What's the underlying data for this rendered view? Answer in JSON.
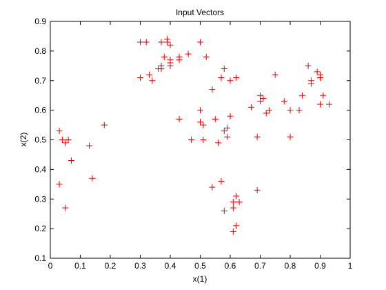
{
  "chart_data": {
    "type": "scatter",
    "title": "Input Vectors",
    "xlabel": "x(1)",
    "ylabel": "x(2)",
    "xlim": [
      0,
      1
    ],
    "ylim": [
      0.1,
      0.9
    ],
    "grid": false,
    "xticks": [
      "0",
      "0.1",
      "0.2",
      "0.3",
      "0.4",
      "0.5",
      "0.6",
      "0.7",
      "0.8",
      "0.9",
      "1"
    ],
    "yticks": [
      "0.1",
      "0.2",
      "0.3",
      "0.4",
      "0.5",
      "0.6",
      "0.7",
      "0.8",
      "0.9"
    ],
    "marker": "+",
    "marker_color": "#e00000",
    "points": [
      {
        "x": 0.03,
        "y": 0.53
      },
      {
        "x": 0.03,
        "y": 0.35
      },
      {
        "x": 0.04,
        "y": 0.5
      },
      {
        "x": 0.05,
        "y": 0.49
      },
      {
        "x": 0.06,
        "y": 0.5
      },
      {
        "x": 0.05,
        "y": 0.27
      },
      {
        "x": 0.07,
        "y": 0.43
      },
      {
        "x": 0.13,
        "y": 0.48
      },
      {
        "x": 0.14,
        "y": 0.37
      },
      {
        "x": 0.18,
        "y": 0.55
      },
      {
        "x": 0.3,
        "y": 0.83
      },
      {
        "x": 0.32,
        "y": 0.83
      },
      {
        "x": 0.3,
        "y": 0.71
      },
      {
        "x": 0.33,
        "y": 0.72
      },
      {
        "x": 0.34,
        "y": 0.7
      },
      {
        "x": 0.36,
        "y": 0.74
      },
      {
        "x": 0.37,
        "y": 0.75
      },
      {
        "x": 0.37,
        "y": 0.74
      },
      {
        "x": 0.37,
        "y": 0.83
      },
      {
        "x": 0.38,
        "y": 0.78
      },
      {
        "x": 0.39,
        "y": 0.84
      },
      {
        "x": 0.39,
        "y": 0.83
      },
      {
        "x": 0.4,
        "y": 0.82
      },
      {
        "x": 0.4,
        "y": 0.76
      },
      {
        "x": 0.4,
        "y": 0.75
      },
      {
        "x": 0.4,
        "y": 0.77
      },
      {
        "x": 0.43,
        "y": 0.77
      },
      {
        "x": 0.43,
        "y": 0.78
      },
      {
        "x": 0.43,
        "y": 0.57
      },
      {
        "x": 0.46,
        "y": 0.79
      },
      {
        "x": 0.47,
        "y": 0.5
      },
      {
        "x": 0.5,
        "y": 0.83
      },
      {
        "x": 0.5,
        "y": 0.6
      },
      {
        "x": 0.5,
        "y": 0.56
      },
      {
        "x": 0.51,
        "y": 0.55
      },
      {
        "x": 0.51,
        "y": 0.5
      },
      {
        "x": 0.52,
        "y": 0.78
      },
      {
        "x": 0.54,
        "y": 0.67
      },
      {
        "x": 0.54,
        "y": 0.34
      },
      {
        "x": 0.55,
        "y": 0.57
      },
      {
        "x": 0.56,
        "y": 0.49
      },
      {
        "x": 0.57,
        "y": 0.36
      },
      {
        "x": 0.57,
        "y": 0.71
      },
      {
        "x": 0.58,
        "y": 0.53
      },
      {
        "x": 0.58,
        "y": 0.74
      },
      {
        "x": 0.58,
        "y": 0.26
      },
      {
        "x": 0.59,
        "y": 0.54
      },
      {
        "x": 0.59,
        "y": 0.51
      },
      {
        "x": 0.6,
        "y": 0.58
      },
      {
        "x": 0.6,
        "y": 0.7
      },
      {
        "x": 0.61,
        "y": 0.29
      },
      {
        "x": 0.61,
        "y": 0.27
      },
      {
        "x": 0.61,
        "y": 0.19
      },
      {
        "x": 0.62,
        "y": 0.21
      },
      {
        "x": 0.62,
        "y": 0.71
      },
      {
        "x": 0.62,
        "y": 0.31
      },
      {
        "x": 0.63,
        "y": 0.29
      },
      {
        "x": 0.67,
        "y": 0.61
      },
      {
        "x": 0.69,
        "y": 0.33
      },
      {
        "x": 0.69,
        "y": 0.51
      },
      {
        "x": 0.7,
        "y": 0.65
      },
      {
        "x": 0.7,
        "y": 0.63
      },
      {
        "x": 0.71,
        "y": 0.64
      },
      {
        "x": 0.72,
        "y": 0.59
      },
      {
        "x": 0.73,
        "y": 0.6
      },
      {
        "x": 0.75,
        "y": 0.72
      },
      {
        "x": 0.78,
        "y": 0.63
      },
      {
        "x": 0.8,
        "y": 0.51
      },
      {
        "x": 0.8,
        "y": 0.6
      },
      {
        "x": 0.83,
        "y": 0.6
      },
      {
        "x": 0.84,
        "y": 0.65
      },
      {
        "x": 0.86,
        "y": 0.75
      },
      {
        "x": 0.87,
        "y": 0.7
      },
      {
        "x": 0.87,
        "y": 0.69
      },
      {
        "x": 0.89,
        "y": 0.73
      },
      {
        "x": 0.9,
        "y": 0.72
      },
      {
        "x": 0.9,
        "y": 0.71
      },
      {
        "x": 0.9,
        "y": 0.62
      },
      {
        "x": 0.91,
        "y": 0.65
      },
      {
        "x": 0.93,
        "y": 0.62
      }
    ]
  }
}
